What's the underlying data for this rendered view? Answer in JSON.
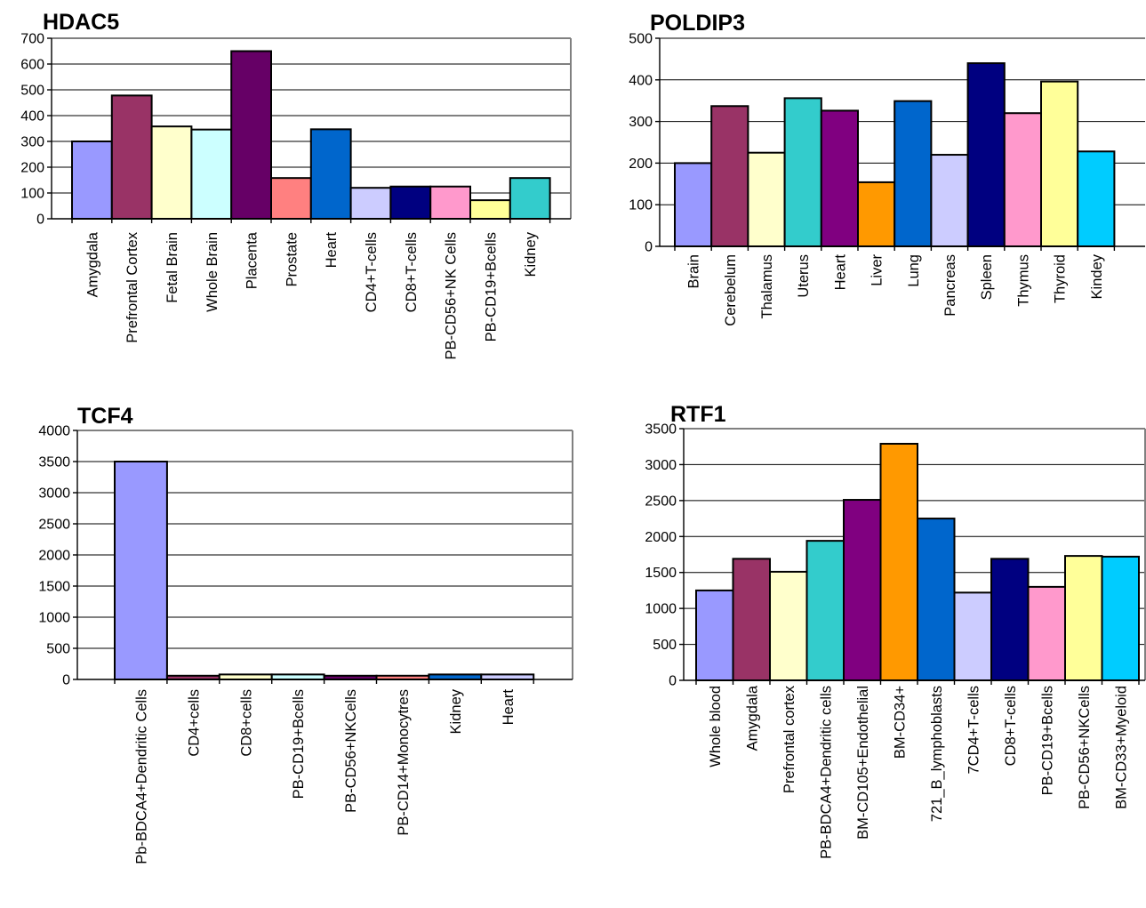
{
  "chart_data": [
    {
      "type": "bar",
      "title": "HDAC5",
      "categories": [
        "Amygdala",
        "Prefrontal Cortex",
        "Fetal Brain",
        "Whole Brain",
        "Placenta",
        "Prostate",
        "Heart",
        "CD4+T-cells",
        "CD8+T-cells",
        "PB-CD56+NK Cells",
        "PB-CD19+Bcells",
        "Kidney"
      ],
      "values": [
        300,
        478,
        358,
        346,
        650,
        158,
        347,
        120,
        125,
        125,
        72,
        158
      ],
      "colors": [
        "#9999ff",
        "#993366",
        "#ffffcc",
        "#ccffff",
        "#660066",
        "#ff8080",
        "#0066cc",
        "#ccccff",
        "#000080",
        "#ff99cc",
        "#ffff99",
        "#33cccc"
      ],
      "ylim": [
        0,
        700
      ],
      "yticks": [
        0,
        100,
        200,
        300,
        400,
        500,
        600,
        700
      ],
      "grid": true
    },
    {
      "type": "bar",
      "title": "POLDIP3",
      "categories": [
        "Brain",
        "Cerebelum",
        "Thalamus",
        "Uterus",
        "Heart",
        "Liver",
        "Lung",
        "Pancreas",
        "Spleen",
        "Thymus",
        "Thyroid",
        "Kindey"
      ],
      "values": [
        200,
        337,
        225,
        356,
        326,
        154,
        349,
        220,
        440,
        320,
        396,
        228
      ],
      "colors": [
        "#9999ff",
        "#993366",
        "#ffffcc",
        "#33cccc",
        "#800080",
        "#ff9900",
        "#0066cc",
        "#ccccff",
        "#000080",
        "#ff99cc",
        "#ffff99",
        "#00ccff"
      ],
      "ylim": [
        0,
        500
      ],
      "yticks": [
        0,
        100,
        200,
        300,
        400,
        500
      ],
      "grid": true
    },
    {
      "type": "bar",
      "title": "TCF4",
      "categories": [
        "Pb-BDCA4+Dendritic Cells",
        "CD4+cells",
        "CD8+cells",
        "PB-CD19+Bcells",
        "PB-CD56+NKCells",
        "PB-CD14+Monocytres",
        "Kidney",
        "Heart"
      ],
      "values": [
        3500,
        60,
        80,
        80,
        60,
        60,
        80,
        80
      ],
      "colors": [
        "#9999ff",
        "#993366",
        "#ffffcc",
        "#ccffff",
        "#660066",
        "#ff8080",
        "#0066cc",
        "#ccccff"
      ],
      "ylim": [
        0,
        4000
      ],
      "yticks": [
        0,
        500,
        1000,
        1500,
        2000,
        2500,
        3000,
        3500,
        4000
      ],
      "grid": true
    },
    {
      "type": "bar",
      "title": "RTF1",
      "categories": [
        "Whole blood",
        "Amygdala",
        "Prefrontal cortex",
        "PB-BDCA4+Dendritic cells",
        "BM-CD105+Endothelial",
        "BM-CD34+",
        "721_B_lymphoblasts",
        "7CD4+T-cells",
        "CD8+T-cells",
        "PB-CD19+Bcells",
        "PB-CD56+NKCells",
        "BM-CD33+Myeloid"
      ],
      "values": [
        1250,
        1690,
        1510,
        1940,
        2510,
        3290,
        2250,
        1220,
        1690,
        1300,
        1730,
        1720
      ],
      "colors": [
        "#9999ff",
        "#993366",
        "#ffffcc",
        "#33cccc",
        "#800080",
        "#ff9900",
        "#0066cc",
        "#ccccff",
        "#000080",
        "#ff99cc",
        "#ffff99",
        "#00ccff"
      ],
      "ylim": [
        0,
        3500
      ],
      "yticks": [
        0,
        500,
        1000,
        1500,
        2000,
        2500,
        3000,
        3500
      ],
      "grid": true
    }
  ]
}
